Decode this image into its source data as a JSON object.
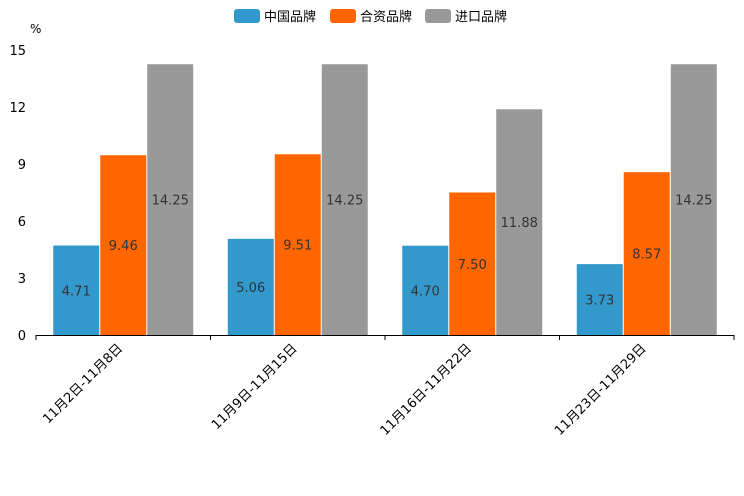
{
  "chart_data": {
    "type": "bar",
    "title": "",
    "ylabel": "%",
    "xlabel": "",
    "ylim": [
      0,
      15
    ],
    "yticks": [
      0,
      3,
      6,
      9,
      12,
      15
    ],
    "categories": [
      "11月2日-11月8日",
      "11月9日-11月15日",
      "11月16日-11月22日",
      "11月23日-11月29日"
    ],
    "series": [
      {
        "name": "中国品牌",
        "color": "#3398cc",
        "values": [
          4.71,
          5.06,
          4.7,
          3.73
        ]
      },
      {
        "name": "合资品牌",
        "color": "#ff6600",
        "values": [
          9.46,
          9.51,
          7.5,
          8.57
        ]
      },
      {
        "name": "进口品牌",
        "color": "#999999",
        "values": [
          14.25,
          14.25,
          11.88,
          14.25
        ]
      }
    ],
    "legend_position": "top-center",
    "grid": false
  }
}
